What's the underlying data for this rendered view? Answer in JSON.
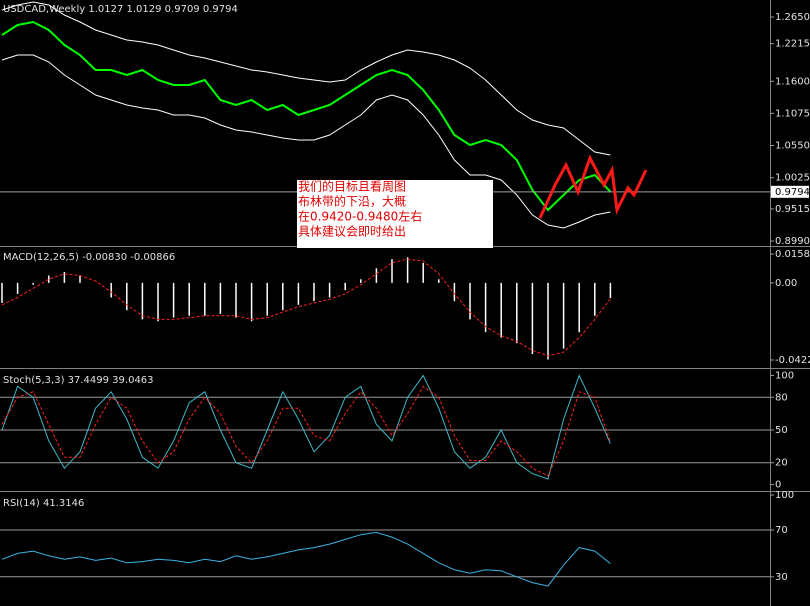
{
  "chart_data": [
    {
      "type": "line",
      "title": "USDCAD,Weekly  1.0127 1.0129 0.9709 0.9794",
      "ylim": [
        0.8925,
        1.2928
      ],
      "yticks": [
        {
          "value": 1.265,
          "label": "1.2650"
        },
        1.2215,
        {
          "value": 1.16,
          "label": "1.1600"
        },
        1.1075,
        {
          "value": 1.055,
          "label": "1.0550"
        },
        1.0025,
        0.9515,
        {
          "value": 0.899,
          "label": "0.8990"
        }
      ],
      "last_price": 0.9794,
      "annotation": [
        "我们的目标且看周图",
        "布林带的下沿，大概",
        "在0.9420-0.9480左右",
        "具体建议会即时给出"
      ],
      "series": [
        {
          "color": "#00ff00",
          "style": "solid",
          "values": [
            1.2356,
            1.252,
            1.2569,
            1.2438,
            1.2193,
            1.2029,
            1.1784,
            1.1784,
            1.1703,
            1.1784,
            1.1621,
            1.1539,
            1.1539,
            1.1621,
            1.1294,
            1.1212,
            1.1294,
            1.1131,
            1.1212,
            1.1049,
            1.1131,
            1.1212,
            1.1376,
            1.1539,
            1.1703,
            1.1784,
            1.1703,
            1.1458,
            1.1131,
            1.0722,
            1.0559,
            1.064,
            1.0559,
            1.0314,
            0.9824,
            0.9497,
            0.9742,
            0.9987,
            1.0069,
            0.9794
          ]
        },
        {
          "color": "#ffffff",
          "style": "solid",
          "values": [
            1.2765,
            1.2846,
            1.2895,
            1.2846,
            1.2683,
            1.2569,
            1.2438,
            1.2356,
            1.2274,
            1.2242,
            1.2193,
            1.2111,
            1.2029,
            1.198,
            1.1915,
            1.185,
            1.1784,
            1.1752,
            1.1703,
            1.1653,
            1.1621,
            1.1588,
            1.1621,
            1.1784,
            1.1915,
            1.2029,
            1.2111,
            1.2078,
            1.2029,
            1.1948,
            1.1817,
            1.1621,
            1.1376,
            1.1131,
            1.0967,
            1.0886,
            1.0837,
            1.064,
            1.0444,
            1.0395
          ]
        },
        {
          "color": "#ffffff",
          "style": "solid",
          "values": [
            1.1948,
            1.2029,
            1.2029,
            1.1915,
            1.1703,
            1.1539,
            1.1376,
            1.1294,
            1.1212,
            1.1163,
            1.1131,
            1.1049,
            1.1049,
            1.1,
            1.0886,
            1.0804,
            1.0771,
            1.0722,
            1.0673,
            1.064,
            1.064,
            1.0722,
            1.0886,
            1.1049,
            1.1294,
            1.1376,
            1.1294,
            1.1049,
            1.0722,
            1.0314,
            1.0069,
            1.0069,
            0.9987,
            0.9742,
            0.9415,
            0.9252,
            0.9203,
            0.9301,
            0.9415,
            0.9464
          ]
        }
      ]
    },
    {
      "type": "bar",
      "title": "MACD(12,26,5) -0.00830 -0.00866",
      "ylim": [
        -0.04226,
        0.01584
      ],
      "yticks": [
        0.01584,
        {
          "value": 0,
          "label": "0.00"
        },
        -0.04226
      ],
      "series": [
        {
          "color": "#ffffff",
          "style": "bar",
          "values": [
            -0.011,
            -0.006,
            -0.001,
            0.004,
            0.006,
            0.004,
            0.0,
            -0.008,
            -0.015,
            -0.02,
            -0.021,
            -0.019,
            -0.018,
            -0.018,
            -0.017,
            -0.019,
            -0.021,
            -0.018,
            -0.015,
            -0.012,
            -0.01,
            -0.008,
            -0.004,
            0.002,
            0.008,
            0.013,
            0.014,
            0.011,
            0.002,
            -0.01,
            -0.02,
            -0.027,
            -0.03,
            -0.033,
            -0.039,
            -0.042,
            -0.036,
            -0.027,
            -0.018,
            -0.0083
          ]
        },
        {
          "color": "#ff2020",
          "style": "dashed",
          "values": [
            -0.012,
            -0.008,
            -0.003,
            0.002,
            0.005,
            0.004,
            0.001,
            -0.005,
            -0.012,
            -0.018,
            -0.02,
            -0.02,
            -0.019,
            -0.018,
            -0.018,
            -0.018,
            -0.02,
            -0.019,
            -0.016,
            -0.013,
            -0.011,
            -0.009,
            -0.006,
            -0.001,
            0.005,
            0.011,
            0.013,
            0.012,
            0.005,
            -0.006,
            -0.016,
            -0.024,
            -0.029,
            -0.032,
            -0.037,
            -0.04,
            -0.038,
            -0.03,
            -0.02,
            -0.00866
          ]
        }
      ]
    },
    {
      "type": "line",
      "title": "Stoch(5,3,3) 37.4499 39.0463",
      "ylim": [
        -5,
        105
      ],
      "yticks": [
        100,
        80,
        50,
        20,
        0
      ],
      "levels": [
        80,
        50,
        20
      ],
      "series": [
        {
          "color": "#40b8c8",
          "style": "solid",
          "values": [
            50,
            90,
            80,
            40,
            15,
            30,
            70,
            85,
            60,
            25,
            15,
            40,
            75,
            85,
            50,
            20,
            15,
            50,
            85,
            60,
            30,
            45,
            80,
            90,
            55,
            40,
            80,
            100,
            70,
            30,
            15,
            25,
            50,
            20,
            10,
            5,
            60,
            100,
            70,
            37.4499
          ]
        },
        {
          "color": "#ff2020",
          "style": "dashed",
          "values": [
            55,
            80,
            85,
            55,
            25,
            25,
            55,
            80,
            70,
            40,
            20,
            30,
            60,
            80,
            65,
            35,
            20,
            40,
            70,
            70,
            45,
            40,
            65,
            85,
            70,
            45,
            65,
            90,
            80,
            45,
            22,
            22,
            40,
            30,
            15,
            8,
            40,
            85,
            80,
            39.0463
          ]
        }
      ]
    },
    {
      "type": "line",
      "title": "RSI(14) 41.3146",
      "ylim": [
        5,
        100
      ],
      "yticks": [
        100,
        70,
        30
      ],
      "levels": [
        70,
        30
      ],
      "series": [
        {
          "color": "#3cb4e6",
          "style": "solid",
          "values": [
            45,
            50,
            52,
            48,
            45,
            47,
            44,
            46,
            42,
            43,
            45,
            44,
            42,
            45,
            43,
            48,
            45,
            47,
            50,
            53,
            55,
            58,
            62,
            66,
            68,
            64,
            58,
            50,
            42,
            36,
            33,
            36,
            35,
            30,
            25,
            22,
            40,
            55,
            52,
            41.3146
          ]
        }
      ]
    }
  ]
}
